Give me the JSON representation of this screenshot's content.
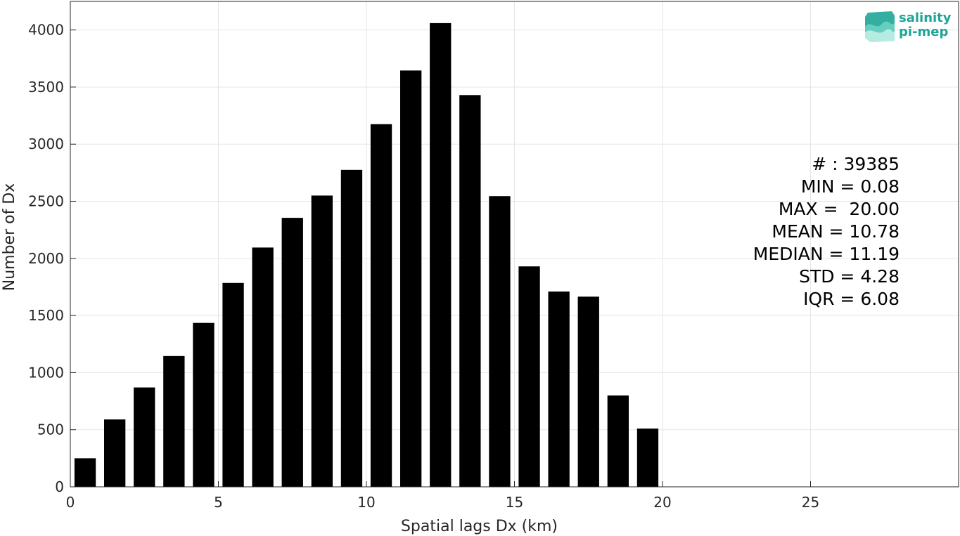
{
  "chart_data": {
    "type": "bar",
    "xlabel": "Spatial lags Dx (km)",
    "ylabel": "Number of Dx",
    "xlim": [
      0,
      30
    ],
    "ylim": [
      0,
      4250
    ],
    "x_ticks": [
      0,
      5,
      10,
      15,
      20,
      25
    ],
    "y_ticks": [
      0,
      500,
      1000,
      1500,
      2000,
      2500,
      3000,
      3500,
      4000
    ],
    "grid": true,
    "bar_color": "#000000",
    "bars": [
      {
        "x": 0.5,
        "value": 250
      },
      {
        "x": 1.5,
        "value": 590
      },
      {
        "x": 2.5,
        "value": 870
      },
      {
        "x": 3.5,
        "value": 1145
      },
      {
        "x": 4.5,
        "value": 1435
      },
      {
        "x": 5.5,
        "value": 1785
      },
      {
        "x": 6.5,
        "value": 2095
      },
      {
        "x": 7.5,
        "value": 2355
      },
      {
        "x": 8.5,
        "value": 2550
      },
      {
        "x": 9.5,
        "value": 2775
      },
      {
        "x": 10.5,
        "value": 3175
      },
      {
        "x": 11.5,
        "value": 3645
      },
      {
        "x": 12.5,
        "value": 4060
      },
      {
        "x": 13.5,
        "value": 3430
      },
      {
        "x": 14.5,
        "value": 2545
      },
      {
        "x": 15.5,
        "value": 1930
      },
      {
        "x": 16.5,
        "value": 1710
      },
      {
        "x": 17.5,
        "value": 1665
      },
      {
        "x": 18.5,
        "value": 800
      },
      {
        "x": 19.5,
        "value": 510
      }
    ]
  },
  "stats": {
    "count": "# : 39385",
    "min": "MIN = 0.08",
    "max": "MAX =  20.00",
    "mean": "MEAN = 10.78",
    "median": "MEDIAN = 11.19",
    "std": "STD = 4.28",
    "iqr": "IQR = 6.08"
  },
  "logo": {
    "line1": "salinity",
    "line2": "pi-mep",
    "color": "#1ea596"
  }
}
